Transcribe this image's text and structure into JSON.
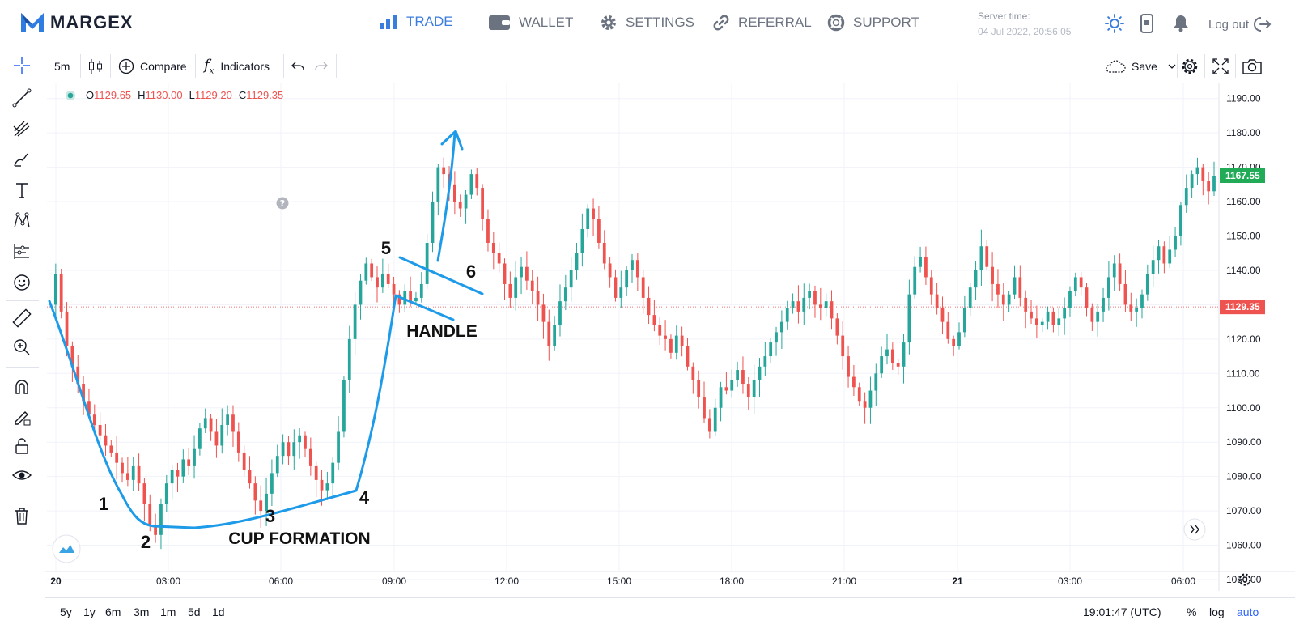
{
  "nav": {
    "brand": "MARGEX",
    "items": [
      {
        "label": "TRADE",
        "icon": "bar-chart-icon",
        "active": true
      },
      {
        "label": "WALLET",
        "icon": "wallet-icon",
        "active": false
      },
      {
        "label": "SETTINGS",
        "icon": "gear-icon",
        "active": false
      },
      {
        "label": "REFERRAL",
        "icon": "link-icon",
        "active": false
      },
      {
        "label": "SUPPORT",
        "icon": "lifebuoy-icon",
        "active": false
      }
    ],
    "server_time_label": "Server time:",
    "server_time_value": "04 Jul 2022, 20:56:05",
    "logout": "Log out"
  },
  "toolbar": {
    "interval": "5m",
    "compare": "Compare",
    "indicators": "Indicators",
    "save": "Save"
  },
  "legend": {
    "o_label": "O",
    "o": "1129.65",
    "h_label": "H",
    "h": "1130.00",
    "l_label": "L",
    "l": "1129.20",
    "c_label": "C",
    "c": "1129.35"
  },
  "bottom": {
    "ranges": [
      "5y",
      "1y",
      "6m",
      "3m",
      "1m",
      "5d",
      "1d"
    ],
    "clock": "19:01:47 (UTC)",
    "percent": "%",
    "log": "log",
    "auto": "auto"
  },
  "colors": {
    "up": "#26a69a",
    "down": "#ef5350",
    "annotation": "#1e9be8",
    "accent": "#3b7ddd"
  },
  "chart_data": {
    "type": "candlestick",
    "interval": "5m",
    "x_ticks": [
      "20",
      "03:00",
      "06:00",
      "09:00",
      "12:00",
      "15:00",
      "18:00",
      "21:00",
      "21",
      "03:00",
      "06:00"
    ],
    "y_ticks": [
      "1190.00",
      "1180.00",
      "1170.00",
      "1160.00",
      "1150.00",
      "1140.00",
      "1130.00",
      "1120.00",
      "1110.00",
      "1100.00",
      "1090.00",
      "1080.00",
      "1070.00",
      "1060.00",
      "1050.00"
    ],
    "ylim": [
      1048,
      1192
    ],
    "last_price_label": "1167.55",
    "last_price": 1167.55,
    "crosshair_label": "1129.35",
    "crosshair_price": 1129.35,
    "price_path": [
      1130,
      1139,
      1128,
      1118,
      1112,
      1107,
      1102,
      1098,
      1095,
      1092,
      1089,
      1087,
      1084,
      1081,
      1079,
      1083,
      1078,
      1072,
      1066,
      1063,
      1072,
      1078,
      1082,
      1080,
      1085,
      1083,
      1088,
      1094,
      1097,
      1093,
      1089,
      1095,
      1098,
      1093,
      1087,
      1082,
      1078,
      1073,
      1070,
      1075,
      1081,
      1086,
      1090,
      1086,
      1090,
      1092,
      1088,
      1083,
      1079,
      1076,
      1078,
      1084,
      1093,
      1108,
      1120,
      1130,
      1137,
      1142,
      1138,
      1135,
      1139,
      1136,
      1133,
      1130,
      1134,
      1131,
      1132,
      1136,
      1148,
      1160,
      1170,
      1168,
      1165,
      1160,
      1158,
      1162,
      1168,
      1164,
      1155,
      1148,
      1145,
      1142,
      1136,
      1132,
      1138,
      1141,
      1137,
      1134,
      1130,
      1125,
      1118,
      1124,
      1131,
      1135,
      1140,
      1145,
      1152,
      1158,
      1155,
      1148,
      1142,
      1138,
      1132,
      1135,
      1140,
      1143,
      1138,
      1132,
      1127,
      1124,
      1121,
      1120,
      1116,
      1121,
      1118,
      1112,
      1108,
      1103,
      1097,
      1093,
      1100,
      1106,
      1105,
      1108,
      1111,
      1107,
      1103,
      1108,
      1112,
      1115,
      1119,
      1122,
      1125,
      1129,
      1131,
      1128,
      1132,
      1134,
      1130,
      1129,
      1131,
      1126,
      1121,
      1115,
      1109,
      1106,
      1102,
      1100,
      1105,
      1110,
      1115,
      1117,
      1113,
      1112,
      1119,
      1133,
      1141,
      1144,
      1138,
      1133,
      1129,
      1125,
      1120,
      1118,
      1122,
      1129,
      1135,
      1140,
      1147,
      1141,
      1136,
      1133,
      1130,
      1133,
      1138,
      1132,
      1128,
      1126,
      1124,
      1125,
      1128,
      1124,
      1126,
      1129,
      1134,
      1138,
      1135,
      1129,
      1125,
      1128,
      1132,
      1138,
      1142,
      1136,
      1130,
      1128,
      1129,
      1133,
      1139,
      1143,
      1147,
      1142,
      1146,
      1150,
      1159,
      1164,
      1168,
      1170,
      1166,
      1163,
      1167.55
    ],
    "annotations": {
      "numbers": [
        "1",
        "2",
        "3",
        "4",
        "5",
        "6"
      ],
      "handle_label": "HANDLE",
      "cup_label": "CUP FORMATION"
    }
  }
}
